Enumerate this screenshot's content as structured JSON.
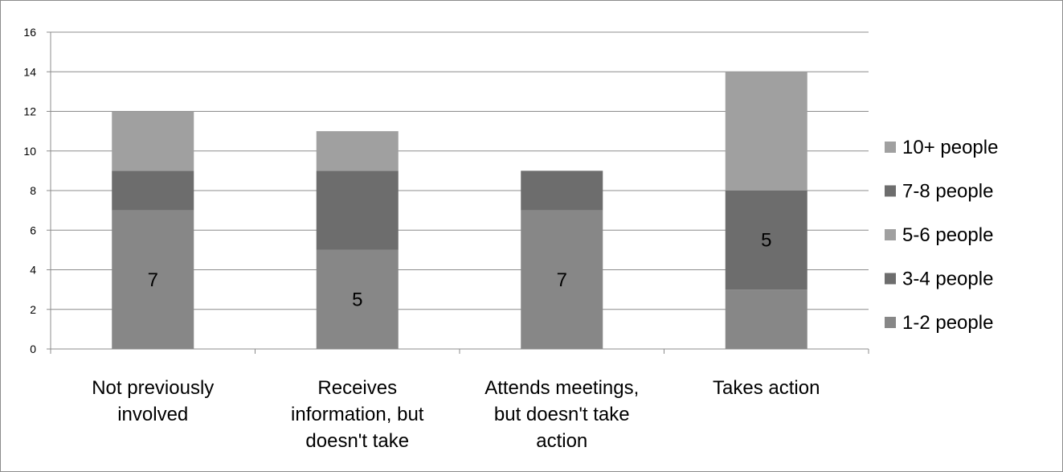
{
  "chart_data": {
    "type": "bar",
    "stacked": true,
    "title": "",
    "xlabel": "",
    "ylabel": "",
    "ylim": [
      0,
      16
    ],
    "y_ticks": [
      0,
      2,
      4,
      6,
      8,
      10,
      12,
      14,
      16
    ],
    "grid": true,
    "legend_position": "right",
    "categories": [
      [
        "Not previously",
        "involved"
      ],
      [
        "Receives",
        "information, but",
        "doesn't take"
      ],
      [
        "Attends meetings,",
        "but doesn't take",
        "action"
      ],
      [
        "Takes action"
      ]
    ],
    "series": [
      {
        "name": "1-2 people",
        "color": "#878787",
        "values": [
          7,
          5,
          7,
          3
        ]
      },
      {
        "name": "3-4 people",
        "color": "#6d6d6d",
        "values": [
          2,
          4,
          1,
          5
        ]
      },
      {
        "name": "5-6 people",
        "color": "#a0a0a0",
        "values": [
          3,
          2,
          0,
          6
        ]
      },
      {
        "name": "7-8 people",
        "color": "#6d6d6d",
        "values": [
          0,
          0,
          1,
          0
        ]
      },
      {
        "name": "10+ people",
        "color": "#a0a0a0",
        "values": [
          0,
          0,
          0,
          0
        ]
      }
    ],
    "data_labels": [
      {
        "category_index": 0,
        "series_index": 0,
        "text": "7"
      },
      {
        "category_index": 1,
        "series_index": 0,
        "text": "5"
      },
      {
        "category_index": 2,
        "series_index": 0,
        "text": "7"
      },
      {
        "category_index": 3,
        "series_index": 1,
        "text": "5"
      }
    ],
    "legend_order": [
      "10+ people",
      "7-8 people",
      "5-6 people",
      "3-4 people",
      "1-2 people"
    ]
  }
}
